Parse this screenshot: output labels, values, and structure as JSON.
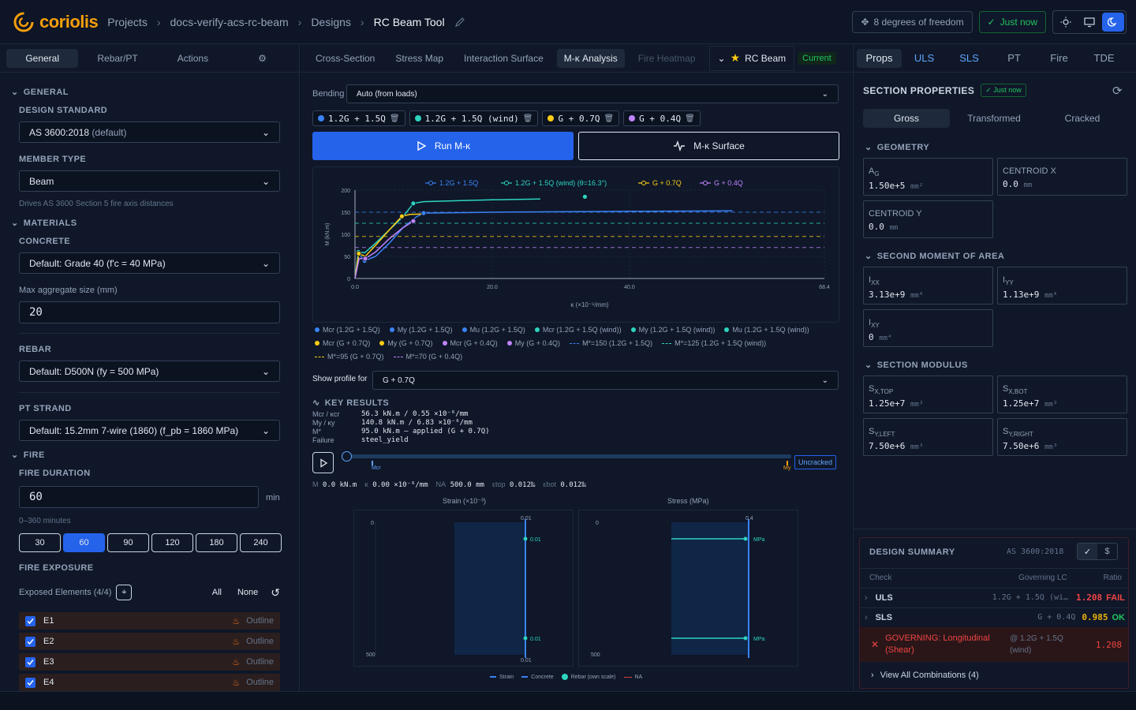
{
  "header": {
    "brand": "coriolis",
    "breadcrumb": [
      "Projects",
      "docs-verify-acs-rc-beam",
      "Designs",
      "RC Beam Tool"
    ],
    "dof_label": "8 degrees of freedom",
    "saved_label": "Just now"
  },
  "left": {
    "tabs": [
      "General",
      "Rebar/PT",
      "Actions"
    ],
    "general_heading": "GENERAL",
    "design_standard_label": "DESIGN STANDARD",
    "design_standard_value": "AS 3600:2018",
    "design_standard_suffix": "(default)",
    "member_type_label": "MEMBER TYPE",
    "member_type_value": "Beam",
    "member_type_hint": "Drives AS 3600 Section 5 fire axis distances",
    "materials_heading": "MATERIALS",
    "concrete_label": "CONCRETE",
    "concrete_value": "Default: Grade 40 (f'c = 40 MPa)",
    "aggregate_label": "Max aggregate size (mm)",
    "aggregate_value": "20",
    "rebar_label": "REBAR",
    "rebar_value": "Default: D500N (fy = 500 MPa)",
    "pt_label": "PT STRAND",
    "pt_value": "Default: 15.2mm 7-wire (1860) (f_pb = 1860 MPa)",
    "fire_heading": "FIRE",
    "fire_duration_label": "FIRE DURATION",
    "fire_duration_value": "60",
    "fire_duration_unit": "min",
    "fire_duration_hint": "0–360 minutes",
    "durations": [
      "30",
      "60",
      "90",
      "120",
      "180",
      "240"
    ],
    "fire_exposure_label": "FIRE EXPOSURE",
    "exposed_label": "Exposed Elements (4/4)",
    "all_label": "All",
    "none_label": "None",
    "elements": [
      {
        "name": "E1",
        "mode": "Outline"
      },
      {
        "name": "E2",
        "mode": "Outline"
      },
      {
        "name": "E3",
        "mode": "Outline"
      },
      {
        "name": "E4",
        "mode": "Outline"
      }
    ]
  },
  "center": {
    "tabs": [
      "Cross-Section",
      "Stress Map",
      "Interaction Surface",
      "M-κ Analysis",
      "Fire Heatmap"
    ],
    "beam_label": "RC Beam",
    "current_badge": "Current",
    "bending_label": "Bending",
    "bending_value": "Auto (from loads)",
    "load_chips": [
      {
        "label": "1.2G + 1.5Q",
        "color": "#3b82f6"
      },
      {
        "label": "1.2G + 1.5Q (wind)",
        "color": "#2dd4bf"
      },
      {
        "label": "G + 0.7Q",
        "color": "#facc15"
      },
      {
        "label": "G + 0.4Q",
        "color": "#c084fc"
      }
    ],
    "run_label": "Run M-κ",
    "surface_label": "M-κ Surface",
    "legend_top": [
      {
        "label": "1.2G + 1.5Q",
        "color": "#3b82f6"
      },
      {
        "label": "1.2G + 1.5Q (wind) (θ=16.3°)",
        "color": "#2dd4bf"
      },
      {
        "label": "G + 0.7Q",
        "color": "#facc15"
      },
      {
        "label": "G + 0.4Q",
        "color": "#c084fc"
      }
    ],
    "legend_rows": [
      [
        {
          "label": "Mcr (1.2G + 1.5Q)",
          "color": "#3b82f6",
          "kind": "dot"
        },
        {
          "label": "My (1.2G + 1.5Q)",
          "color": "#3b82f6",
          "kind": "dot"
        },
        {
          "label": "Mu (1.2G + 1.5Q)",
          "color": "#3b82f6",
          "kind": "dot"
        },
        {
          "label": "Mcr (1.2G + 1.5Q (wind))",
          "color": "#2dd4bf",
          "kind": "dot"
        },
        {
          "label": "My (1.2G + 1.5Q (wind))",
          "color": "#2dd4bf",
          "kind": "dot"
        },
        {
          "label": "Mu (1.2G + 1.5Q (wind))",
          "color": "#2dd4bf",
          "kind": "dot"
        }
      ],
      [
        {
          "label": "Mcr (G + 0.7Q)",
          "color": "#facc15",
          "kind": "dot"
        },
        {
          "label": "My (G + 0.7Q)",
          "color": "#facc15",
          "kind": "dot"
        },
        {
          "label": "Mcr (G + 0.4Q)",
          "color": "#c084fc",
          "kind": "dot"
        },
        {
          "label": "My (G + 0.4Q)",
          "color": "#c084fc",
          "kind": "dot"
        },
        {
          "label": "M*=150 (1.2G + 1.5Q)",
          "color": "#3b82f6",
          "kind": "dash"
        },
        {
          "label": "M*=125 (1.2G + 1.5Q (wind))",
          "color": "#2dd4bf",
          "kind": "dash"
        }
      ],
      [
        {
          "label": "M*=95 (G + 0.7Q)",
          "color": "#facc15",
          "kind": "dash"
        },
        {
          "label": "M*=70 (G + 0.4Q)",
          "color": "#c084fc",
          "kind": "dash"
        }
      ]
    ],
    "profile_label": "Show profile for",
    "profile_value": "G + 0.7Q",
    "key_results_heading": "KEY RESULTS",
    "key_results": [
      {
        "k": "Mcr / κcr",
        "v": "56.3 kN.m / 0.55 ×10⁻⁶/mm"
      },
      {
        "k": "My / κy",
        "v": "140.8 kN.m / 6.83 ×10⁻⁶/mm"
      },
      {
        "k": "M*",
        "v": "95.0 kN.m — applied (G + 0.7Q)"
      },
      {
        "k": "Failure",
        "v": "steel_yield"
      }
    ],
    "slider_state": "Uncracked",
    "slider_mcr": "Mcr",
    "slider_my": "My",
    "slider_position": 0.0,
    "readout": [
      {
        "k": "M",
        "v": "0.0 kN.m"
      },
      {
        "k": "κ",
        "v": "0.00 ×10⁻⁶/mm"
      },
      {
        "k": "NA",
        "v": "500.0 mm"
      },
      {
        "k": "εtop",
        "v": "0.012‰"
      },
      {
        "k": "εbot",
        "v": "0.012‰"
      }
    ],
    "strain_title": "Strain (×10⁻³)",
    "stress_title": "Stress (MPa)",
    "strain_top": "0.01",
    "strain_bot": "0.01",
    "strain_mid1": "0.01",
    "strain_mid2": "0.01",
    "stress_top": "0.4",
    "stress_mid1": "MPa",
    "stress_mid2": "MPa",
    "depth_top": "0",
    "depth_bot": "500",
    "profile_legend": [
      "Strain",
      "Concrete",
      "Rebar (own scale)",
      "NA"
    ]
  },
  "chart_data": {
    "type": "line",
    "xlabel": "κ (×10⁻⁶/mm)",
    "ylabel": "M (kN.m)",
    "xlim": [
      0,
      68.4
    ],
    "ylim": [
      0,
      200
    ],
    "x_ticks": [
      "0.0",
      "20.0",
      "40.0",
      "68.4"
    ],
    "y_ticks": [
      "0",
      "50",
      "100",
      "150",
      "200"
    ],
    "series": [
      {
        "name": "1.2G + 1.5Q",
        "color": "#3b82f6",
        "x": [
          0,
          0.55,
          1.4,
          3,
          5,
          7,
          9,
          10,
          15,
          20,
          30,
          40,
          55
        ],
        "y": [
          0,
          56,
          40,
          50,
          80,
          115,
          140,
          148,
          149,
          150,
          151,
          152,
          153
        ]
      },
      {
        "name": "1.2G + 1.5Q (wind)",
        "color": "#2dd4bf",
        "x": [
          0,
          0.5,
          1.4,
          3,
          5,
          7,
          8,
          8.5,
          10,
          15,
          20,
          27
        ],
        "y": [
          0,
          60,
          58,
          80,
          110,
          140,
          160,
          170,
          174,
          176,
          178,
          180
        ]
      },
      {
        "name": "G + 0.7Q",
        "color": "#facc15",
        "x": [
          0,
          0.55,
          1.5,
          3,
          5,
          6.83,
          8,
          10
        ],
        "y": [
          0,
          56.3,
          50,
          75,
          110,
          140.8,
          145,
          146
        ]
      },
      {
        "name": "G + 0.4Q",
        "color": "#c084fc",
        "x": [
          0,
          0.6,
          1.5,
          3,
          5,
          7,
          8.5
        ],
        "y": [
          0,
          45,
          45,
          60,
          90,
          115,
          130
        ]
      }
    ],
    "markers": [
      {
        "x": 0.5,
        "y": 60,
        "color": "#2dd4bf"
      },
      {
        "x": 8.5,
        "y": 170,
        "color": "#2dd4bf"
      },
      {
        "x": 33.5,
        "y": 185,
        "color": "#2dd4bf"
      },
      {
        "x": 0.55,
        "y": 56.3,
        "color": "#facc15"
      },
      {
        "x": 6.83,
        "y": 140.8,
        "color": "#facc15"
      },
      {
        "x": 1.4,
        "y": 40,
        "color": "#3b82f6"
      },
      {
        "x": 10,
        "y": 148,
        "color": "#3b82f6"
      },
      {
        "x": 1.5,
        "y": 45,
        "color": "#c084fc"
      },
      {
        "x": 8.5,
        "y": 130,
        "color": "#c084fc"
      }
    ],
    "ref_lines": [
      {
        "y": 150,
        "color": "#3b82f6"
      },
      {
        "y": 125,
        "color": "#2dd4bf"
      },
      {
        "y": 95,
        "color": "#facc15"
      },
      {
        "y": 70,
        "color": "#c084fc"
      }
    ]
  },
  "right": {
    "tabs": [
      "Props",
      "ULS",
      "SLS",
      "PT",
      "Fire",
      "TDE"
    ],
    "section_props_heading": "SECTION PROPERTIES",
    "section_props_badge": "Just now",
    "subtabs": [
      "Gross",
      "Transformed",
      "Cracked"
    ],
    "geometry_heading": "GEOMETRY",
    "geometry": [
      {
        "name": "A",
        "sub": "G",
        "value": "1.50e+5",
        "unit": "mm²"
      },
      {
        "name": "CENTROID X",
        "sub": "",
        "value": "0.0",
        "unit": "mm"
      },
      {
        "name": "CENTROID Y",
        "sub": "",
        "value": "0.0",
        "unit": "mm"
      }
    ],
    "moment_heading": "SECOND MOMENT OF AREA",
    "moment": [
      {
        "name": "I",
        "sub": "XX",
        "value": "3.13e+9",
        "unit": "mm⁴"
      },
      {
        "name": "I",
        "sub": "YY",
        "value": "1.13e+9",
        "unit": "mm⁴"
      },
      {
        "name": "I",
        "sub": "XY",
        "value": "0",
        "unit": "mm⁴"
      }
    ],
    "modulus_heading": "SECTION MODULUS",
    "modulus": [
      {
        "name": "S",
        "sub": "X,TOP",
        "value": "1.25e+7",
        "unit": "mm³"
      },
      {
        "name": "S",
        "sub": "X,BOT",
        "value": "1.25e+7",
        "unit": "mm³"
      },
      {
        "name": "S",
        "sub": "Y,LEFT",
        "value": "7.50e+6",
        "unit": "mm³"
      },
      {
        "name": "S",
        "sub": "Y,RIGHT",
        "value": "7.50e+6",
        "unit": "mm³"
      }
    ],
    "summary": {
      "title": "DESIGN SUMMARY",
      "standard": "AS 3600:2018",
      "col_check": "Check",
      "col_lc": "Governing LC",
      "col_ratio": "Ratio",
      "rows": [
        {
          "check": "ULS",
          "lc": "1.2G + 1.5Q (wi…",
          "ratio": "1.208",
          "status": "FAIL"
        },
        {
          "check": "SLS",
          "lc": "G + 0.4Q",
          "ratio": "0.985",
          "status": "OK"
        }
      ],
      "governing_label": "GOVERNING: Longitudinal (Shear)",
      "governing_lc": "@ 1.2G + 1.5Q (wind)",
      "governing_ratio": "1.208",
      "view_all": "View All Combinations (4)"
    }
  }
}
